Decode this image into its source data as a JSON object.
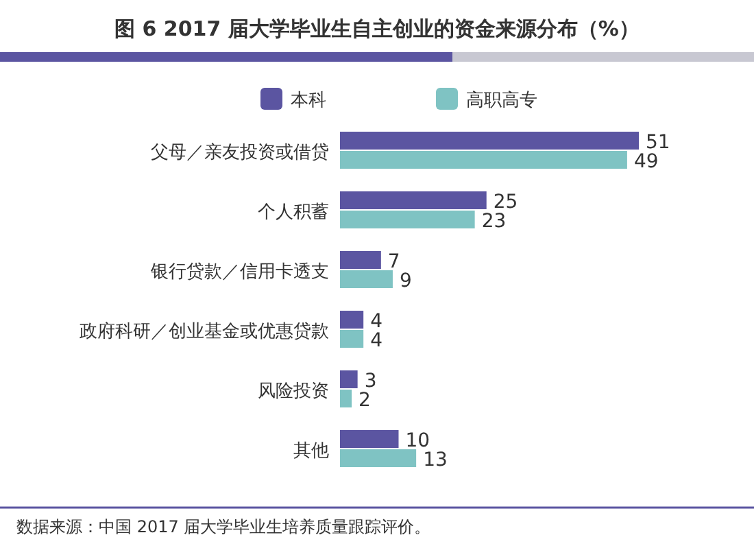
{
  "chart_data": {
    "type": "bar",
    "orientation": "horizontal",
    "title": "图 6  2017 届大学毕业生自主创业的资金来源分布（%）",
    "categories": [
      "父母／亲友投资或借贷",
      "个人积蓄",
      "银行贷款／信用卡透支",
      "政府科研／创业基金或优惠贷款",
      "风险投资",
      "其他"
    ],
    "series": [
      {
        "name": "本科",
        "color": "#5b55a1",
        "values": [
          51,
          25,
          7,
          4,
          3,
          10
        ]
      },
      {
        "name": "高职高专",
        "color": "#7fc3c3",
        "values": [
          49,
          23,
          9,
          4,
          2,
          13
        ]
      }
    ],
    "data_labels": true,
    "legend": "top",
    "annotations": [
      "数据来源：中国 2017 届大学毕业生培养质量跟踪评价。"
    ]
  }
}
